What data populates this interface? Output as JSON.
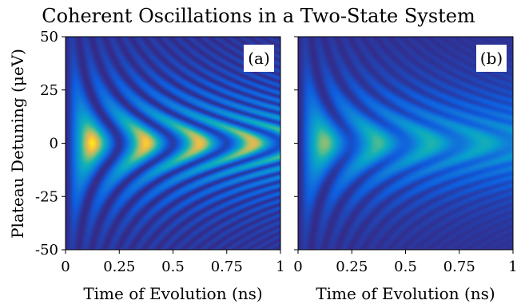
{
  "title": "Coherent Oscillations in a Two-State System",
  "colors": {
    "colormap": "viridis",
    "low": "#3b1f8c",
    "mid": "#1fa5c9",
    "high": "#fde724",
    "frame": "#000000",
    "panel_label_bg": "#ffffff"
  },
  "chart_data": [
    {
      "type": "heatmap",
      "panel_label": "(a)",
      "xlabel": "Time of Evolution (ns)",
      "ylabel": "Plateau Detuning (μeV)",
      "xlim": [
        0,
        1
      ],
      "ylim": [
        -50,
        50
      ],
      "xticks": [
        0,
        0.25,
        0.5,
        0.75,
        1
      ],
      "xtick_labels": [
        "0",
        "0.25",
        "0.5",
        "0.75",
        "1"
      ],
      "yticks": [
        50,
        25,
        0,
        -25,
        -50
      ],
      "ytick_labels": [
        "50",
        "25",
        "0",
        "-25",
        "-50"
      ],
      "oscillation_period_ns_at_zero_detuning": 0.25,
      "fringe_maxima_ns_at_zero_detuning": [
        0.12,
        0.37,
        0.62,
        0.87
      ],
      "decay_time_ns": 4.0,
      "colorscale": "viridis"
    },
    {
      "type": "heatmap",
      "panel_label": "(b)",
      "xlabel": "Time of Evolution (ns)",
      "ylabel": "",
      "xlim": [
        0,
        1
      ],
      "ylim": [
        -50,
        50
      ],
      "xticks": [
        0,
        0.25,
        0.5,
        0.75,
        1
      ],
      "xtick_labels": [
        "0",
        "0.25",
        "0.5",
        "0.75",
        "1"
      ],
      "yticks": [
        50,
        25,
        0,
        -25,
        -50
      ],
      "ytick_labels": [
        "",
        "",
        "",
        "",
        ""
      ],
      "oscillation_period_ns_at_zero_detuning": 0.25,
      "fringe_maxima_ns_at_zero_detuning": [
        0.12,
        0.37,
        0.62,
        0.87
      ],
      "amplitude_at_zero_detuning": 0.85,
      "decay_time_ns": 0.8,
      "colorscale": "viridis"
    }
  ]
}
